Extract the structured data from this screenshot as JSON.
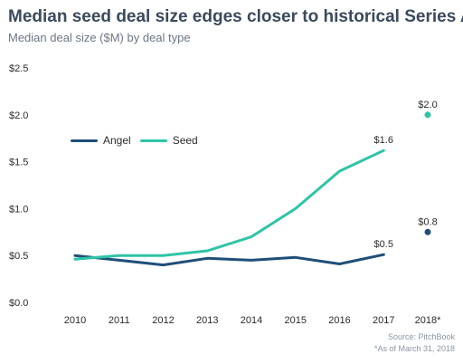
{
  "chart_data": {
    "type": "line",
    "title": "Median seed deal size edges closer to historical Series A",
    "subtitle": "Median deal size ($M) by deal type",
    "xlabel": "",
    "ylabel": "",
    "categories": [
      "2010",
      "2011",
      "2012",
      "2013",
      "2014",
      "2015",
      "2016",
      "2017",
      "2018*"
    ],
    "ylim": [
      0,
      2.5
    ],
    "yticks": [
      "$0.0",
      "$0.5",
      "$1.0",
      "$1.5",
      "$2.0",
      "$2.5"
    ],
    "ytick_values": [
      0,
      0.5,
      1.0,
      1.5,
      2.0,
      2.5
    ],
    "grid": false,
    "legend_position": "top-left",
    "series": [
      {
        "name": "Angel",
        "color": "#1f4e79",
        "values": [
          0.5,
          0.45,
          0.4,
          0.47,
          0.45,
          0.48,
          0.41,
          0.51,
          0.75
        ],
        "line_through_index": 7,
        "point_indices": [
          8
        ],
        "labels": [
          {
            "index": 7,
            "text": "$0.5"
          },
          {
            "index": 8,
            "text": "$0.8"
          }
        ]
      },
      {
        "name": "Seed",
        "color": "#2ec4a6",
        "values": [
          0.46,
          0.5,
          0.5,
          0.55,
          0.7,
          1.0,
          1.4,
          1.62,
          2.0
        ],
        "line_through_index": 7,
        "point_indices": [
          8
        ],
        "labels": [
          {
            "index": 7,
            "text": "$1.6"
          },
          {
            "index": 8,
            "text": "$2.0"
          }
        ]
      }
    ],
    "source": "Source: PitchBook",
    "footnote": "*As of March 31, 2018"
  }
}
